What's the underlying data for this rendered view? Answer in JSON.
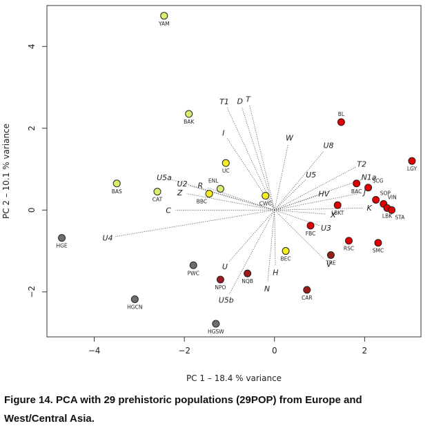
{
  "chart_data": {
    "type": "scatter",
    "xlabel": "PC 1 – 18.4 % variance",
    "ylabel": "PC 2 – 10.1 % variance",
    "xlim": [
      -5.05,
      3.25
    ],
    "ylim": [
      -3.1,
      5.0
    ],
    "xticks": [
      -4,
      -2,
      0,
      2
    ],
    "yticks": [
      -2,
      0,
      2,
      4
    ],
    "x_tick_labels": [
      "−4",
      "−2",
      "0",
      "2"
    ],
    "y_tick_labels": [
      "−2",
      "0",
      "2",
      "4"
    ],
    "colors": {
      "red": "#e00000",
      "darkred": "#9b1b1b",
      "yellow": "#f6ee20",
      "lime": "#d6f06c",
      "gray": "#6e6e6e"
    },
    "points": [
      {
        "label": "YAM",
        "x": -2.45,
        "y": 4.75,
        "color": "lime",
        "label_pos": "below"
      },
      {
        "label": "BAK",
        "x": -1.9,
        "y": 2.35,
        "color": "lime",
        "label_pos": "below"
      },
      {
        "label": "BAS",
        "x": -3.5,
        "y": 0.65,
        "color": "lime",
        "label_pos": "below"
      },
      {
        "label": "CAT",
        "x": -2.6,
        "y": 0.45,
        "color": "lime",
        "label_pos": "below"
      },
      {
        "label": "ENL",
        "x": -1.2,
        "y": 0.52,
        "color": "lime",
        "label_pos": "above-left"
      },
      {
        "label": "UC",
        "x": -1.08,
        "y": 1.15,
        "color": "yellow",
        "label_pos": "below"
      },
      {
        "label": "BBC",
        "x": -1.45,
        "y": 0.4,
        "color": "yellow",
        "label_pos": "below-left"
      },
      {
        "label": "CWC",
        "x": -0.2,
        "y": 0.35,
        "color": "yellow",
        "label_pos": "below"
      },
      {
        "label": "BEC",
        "x": 0.25,
        "y": -1.0,
        "color": "yellow",
        "label_pos": "below"
      },
      {
        "label": "BL",
        "x": 1.48,
        "y": 2.15,
        "color": "red",
        "label_pos": "above"
      },
      {
        "label": "LGY",
        "x": 3.05,
        "y": 1.2,
        "color": "red",
        "label_pos": "below"
      },
      {
        "label": "BAC",
        "x": 1.82,
        "y": 0.65,
        "color": "red",
        "label_pos": "below"
      },
      {
        "label": "SCG",
        "x": 2.08,
        "y": 0.55,
        "color": "red",
        "label_pos": "above-right"
      },
      {
        "label": "SOP",
        "x": 2.25,
        "y": 0.25,
        "color": "red",
        "label_pos": "above-right"
      },
      {
        "label": "VIN",
        "x": 2.42,
        "y": 0.15,
        "color": "red",
        "label_pos": "above-right"
      },
      {
        "label": "LBK",
        "x": 2.5,
        "y": 0.05,
        "color": "red",
        "label_pos": "below"
      },
      {
        "label": "STA",
        "x": 2.6,
        "y": 0.0,
        "color": "red",
        "label_pos": "below-right"
      },
      {
        "label": "LBKT",
        "x": 1.4,
        "y": 0.12,
        "color": "red",
        "label_pos": "below"
      },
      {
        "label": "FBC",
        "x": 0.8,
        "y": -0.38,
        "color": "red",
        "label_pos": "below"
      },
      {
        "label": "RSC",
        "x": 1.65,
        "y": -0.75,
        "color": "red",
        "label_pos": "below"
      },
      {
        "label": "SMC",
        "x": 2.3,
        "y": -0.8,
        "color": "red",
        "label_pos": "below"
      },
      {
        "label": "TRE",
        "x": 1.25,
        "y": -1.1,
        "color": "darkred",
        "label_pos": "below"
      },
      {
        "label": "NQB",
        "x": -0.6,
        "y": -1.55,
        "color": "darkred",
        "label_pos": "below"
      },
      {
        "label": "NPO",
        "x": -1.2,
        "y": -1.7,
        "color": "darkred",
        "label_pos": "below"
      },
      {
        "label": "CAR",
        "x": 0.72,
        "y": -1.95,
        "color": "darkred",
        "label_pos": "below"
      },
      {
        "label": "HGE",
        "x": -4.72,
        "y": -0.68,
        "color": "gray",
        "label_pos": "below"
      },
      {
        "label": "PWC",
        "x": -1.8,
        "y": -1.35,
        "color": "gray",
        "label_pos": "below"
      },
      {
        "label": "HGCN",
        "x": -3.1,
        "y": -2.18,
        "color": "gray",
        "label_pos": "below"
      },
      {
        "label": "HGSW",
        "x": -1.3,
        "y": -2.78,
        "color": "gray",
        "label_pos": "below"
      }
    ],
    "vectors": [
      {
        "label": "T1",
        "x": -1.05,
        "y": 2.5
      },
      {
        "label": "D",
        "x": -0.72,
        "y": 2.5
      },
      {
        "label": "T",
        "x": -0.55,
        "y": 2.55
      },
      {
        "label": "I",
        "x": -1.05,
        "y": 1.75
      },
      {
        "label": "W",
        "x": 0.3,
        "y": 1.6
      },
      {
        "label": "U8",
        "x": 1.1,
        "y": 1.45
      },
      {
        "label": "T2",
        "x": 1.8,
        "y": 1.05
      },
      {
        "label": "U5",
        "x": 0.7,
        "y": 0.75
      },
      {
        "label": "N1a",
        "x": 1.95,
        "y": 0.75
      },
      {
        "label": "HV",
        "x": 0.95,
        "y": 0.35
      },
      {
        "label": "J",
        "x": 1.85,
        "y": 0.4
      },
      {
        "label": "K",
        "x": 1.95,
        "y": 0.05
      },
      {
        "label": "X",
        "x": 1.15,
        "y": -0.1
      },
      {
        "label": "U3",
        "x": 1.0,
        "y": -0.38
      },
      {
        "label": "U5a",
        "x": -2.3,
        "y": 0.75
      },
      {
        "label": "U2",
        "x": -1.9,
        "y": 0.6
      },
      {
        "label": "R",
        "x": -1.5,
        "y": 0.55
      },
      {
        "label": "Z",
        "x": -1.95,
        "y": 0.4
      },
      {
        "label": "C",
        "x": -2.2,
        "y": 0.0
      },
      {
        "label": "U4",
        "x": -3.55,
        "y": -0.65
      },
      {
        "label": "U",
        "x": -1.0,
        "y": -1.25
      },
      {
        "label": "H",
        "x": 0.02,
        "y": -1.35
      },
      {
        "label": "V",
        "x": 1.1,
        "y": -1.2
      },
      {
        "label": "N",
        "x": -0.15,
        "y": -1.75
      },
      {
        "label": "U5b",
        "x": -1.0,
        "y": -2.05
      }
    ]
  },
  "caption": "Figure 14. PCA with 29 prehistoric populations (29POP) from Europe and West/Central Asia."
}
